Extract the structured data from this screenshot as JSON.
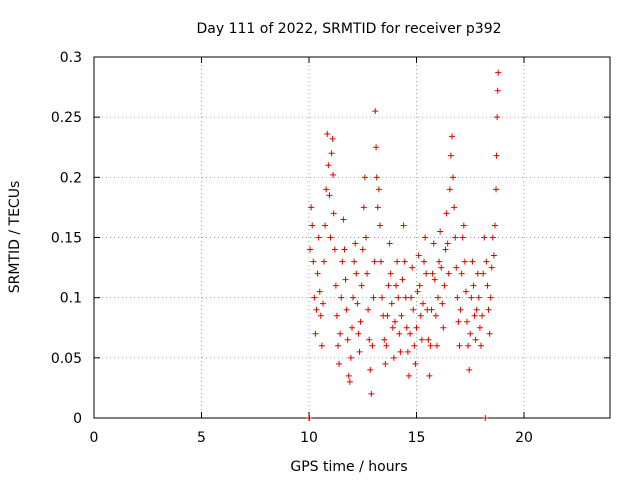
{
  "chart_data": {
    "type": "scatter",
    "title": "Day 111 of 2022, SRMTID for receiver p392",
    "xlabel": "GPS time / hours",
    "ylabel": "SRMTID / TECUs",
    "xlim": [
      0,
      24
    ],
    "ylim": [
      0,
      0.3
    ],
    "xticks": [
      0,
      5,
      10,
      15,
      20
    ],
    "xtick_labels": [
      "0",
      "5",
      "10",
      "15",
      "20"
    ],
    "yticks": [
      0,
      0.05,
      0.1,
      0.15,
      0.2,
      0.25,
      0.3
    ],
    "ytick_labels": [
      "0",
      "0.05",
      "0.1",
      "0.15",
      "0.2",
      "0.25",
      "0.3"
    ],
    "grid": true,
    "marker": "+",
    "series": [
      {
        "name": "p392",
        "color": "#e00000",
        "points": [
          [
            10.0,
            0.0
          ],
          [
            10.02,
            0.0
          ],
          [
            10.05,
            0.14
          ],
          [
            10.1,
            0.175
          ],
          [
            10.15,
            0.16
          ],
          [
            10.2,
            0.13
          ],
          [
            10.25,
            0.1
          ],
          [
            10.3,
            0.07
          ],
          [
            10.35,
            0.09
          ],
          [
            10.4,
            0.12
          ],
          [
            10.45,
            0.15
          ],
          [
            10.5,
            0.105
          ],
          [
            10.55,
            0.085
          ],
          [
            10.6,
            0.06
          ],
          [
            10.65,
            0.095
          ],
          [
            10.7,
            0.13
          ],
          [
            10.75,
            0.16
          ],
          [
            10.8,
            0.19
          ],
          [
            10.85,
            0.236
          ],
          [
            10.9,
            0.21
          ],
          [
            10.95,
            0.185
          ],
          [
            11.0,
            0.15
          ],
          [
            11.05,
            0.22
          ],
          [
            11.1,
            0.232
          ],
          [
            11.12,
            0.202
          ],
          [
            11.15,
            0.17
          ],
          [
            11.2,
            0.14
          ],
          [
            11.25,
            0.11
          ],
          [
            11.3,
            0.085
          ],
          [
            11.35,
            0.06
          ],
          [
            11.4,
            0.045
          ],
          [
            11.45,
            0.07
          ],
          [
            11.5,
            0.1
          ],
          [
            11.55,
            0.13
          ],
          [
            11.6,
            0.165
          ],
          [
            11.65,
            0.14
          ],
          [
            11.7,
            0.115
          ],
          [
            11.75,
            0.09
          ],
          [
            11.8,
            0.065
          ],
          [
            11.85,
            0.035
          ],
          [
            11.9,
            0.03
          ],
          [
            11.95,
            0.05
          ],
          [
            12.0,
            0.075
          ],
          [
            12.05,
            0.1
          ],
          [
            12.1,
            0.13
          ],
          [
            12.15,
            0.145
          ],
          [
            12.2,
            0.12
          ],
          [
            12.25,
            0.095
          ],
          [
            12.3,
            0.07
          ],
          [
            12.35,
            0.055
          ],
          [
            12.4,
            0.08
          ],
          [
            12.45,
            0.11
          ],
          [
            12.5,
            0.14
          ],
          [
            12.55,
            0.175
          ],
          [
            12.6,
            0.2
          ],
          [
            12.65,
            0.15
          ],
          [
            12.7,
            0.12
          ],
          [
            12.75,
            0.09
          ],
          [
            12.8,
            0.065
          ],
          [
            12.85,
            0.04
          ],
          [
            12.9,
            0.02
          ],
          [
            12.95,
            0.06
          ],
          [
            13.0,
            0.1
          ],
          [
            13.05,
            0.13
          ],
          [
            13.08,
            0.255
          ],
          [
            13.12,
            0.225
          ],
          [
            13.15,
            0.2
          ],
          [
            13.2,
            0.175
          ],
          [
            13.25,
            0.19
          ],
          [
            13.3,
            0.16
          ],
          [
            13.35,
            0.13
          ],
          [
            13.4,
            0.1
          ],
          [
            13.45,
            0.085
          ],
          [
            13.5,
            0.065
          ],
          [
            13.55,
            0.045
          ],
          [
            13.6,
            0.06
          ],
          [
            13.65,
            0.085
          ],
          [
            13.7,
            0.11
          ],
          [
            13.75,
            0.145
          ],
          [
            13.8,
            0.12
          ],
          [
            13.85,
            0.095
          ],
          [
            13.9,
            0.075
          ],
          [
            13.95,
            0.05
          ],
          [
            14.0,
            0.08
          ],
          [
            14.05,
            0.11
          ],
          [
            14.1,
            0.13
          ],
          [
            14.15,
            0.1
          ],
          [
            14.2,
            0.07
          ],
          [
            14.25,
            0.055
          ],
          [
            14.3,
            0.085
          ],
          [
            14.35,
            0.115
          ],
          [
            14.4,
            0.16
          ],
          [
            14.45,
            0.13
          ],
          [
            14.5,
            0.1
          ],
          [
            14.55,
            0.075
          ],
          [
            14.6,
            0.055
          ],
          [
            14.65,
            0.035
          ],
          [
            14.7,
            0.07
          ],
          [
            14.75,
            0.1
          ],
          [
            14.8,
            0.125
          ],
          [
            14.85,
            0.09
          ],
          [
            14.9,
            0.06
          ],
          [
            14.95,
            0.045
          ],
          [
            15.0,
            0.075
          ],
          [
            15.05,
            0.105
          ],
          [
            15.1,
            0.135
          ],
          [
            15.15,
            0.11
          ],
          [
            15.2,
            0.085
          ],
          [
            15.25,
            0.065
          ],
          [
            15.3,
            0.095
          ],
          [
            15.35,
            0.13
          ],
          [
            15.4,
            0.15
          ],
          [
            15.45,
            0.12
          ],
          [
            15.5,
            0.09
          ],
          [
            15.55,
            0.065
          ],
          [
            15.6,
            0.035
          ],
          [
            15.65,
            0.06
          ],
          [
            15.7,
            0.09
          ],
          [
            15.75,
            0.12
          ],
          [
            15.8,
            0.145
          ],
          [
            15.85,
            0.115
          ],
          [
            15.9,
            0.085
          ],
          [
            15.95,
            0.06
          ],
          [
            16.0,
            0.1
          ],
          [
            16.05,
            0.13
          ],
          [
            16.1,
            0.155
          ],
          [
            16.15,
            0.125
          ],
          [
            16.2,
            0.095
          ],
          [
            16.25,
            0.075
          ],
          [
            16.3,
            0.11
          ],
          [
            16.35,
            0.14
          ],
          [
            16.4,
            0.17
          ],
          [
            16.45,
            0.145
          ],
          [
            16.5,
            0.12
          ],
          [
            16.55,
            0.19
          ],
          [
            16.6,
            0.218
          ],
          [
            16.65,
            0.234
          ],
          [
            16.7,
            0.2
          ],
          [
            16.75,
            0.175
          ],
          [
            16.8,
            0.15
          ],
          [
            16.85,
            0.125
          ],
          [
            16.9,
            0.1
          ],
          [
            16.95,
            0.08
          ],
          [
            17.0,
            0.06
          ],
          [
            17.05,
            0.09
          ],
          [
            17.1,
            0.12
          ],
          [
            17.15,
            0.15
          ],
          [
            17.2,
            0.16
          ],
          [
            17.25,
            0.13
          ],
          [
            17.3,
            0.105
          ],
          [
            17.35,
            0.08
          ],
          [
            17.4,
            0.06
          ],
          [
            17.45,
            0.04
          ],
          [
            17.5,
            0.07
          ],
          [
            17.55,
            0.1
          ],
          [
            17.6,
            0.13
          ],
          [
            17.65,
            0.11
          ],
          [
            17.7,
            0.085
          ],
          [
            17.75,
            0.065
          ],
          [
            17.8,
            0.09
          ],
          [
            17.85,
            0.12
          ],
          [
            17.9,
            0.1
          ],
          [
            17.95,
            0.075
          ],
          [
            18.0,
            0.06
          ],
          [
            18.05,
            0.085
          ],
          [
            18.1,
            0.12
          ],
          [
            18.15,
            0.15
          ],
          [
            18.2,
            0.0
          ],
          [
            18.25,
            0.13
          ],
          [
            18.3,
            0.11
          ],
          [
            18.35,
            0.09
          ],
          [
            18.4,
            0.07
          ],
          [
            18.45,
            0.1
          ],
          [
            18.5,
            0.125
          ],
          [
            18.55,
            0.15
          ],
          [
            18.6,
            0.135
          ],
          [
            18.65,
            0.16
          ],
          [
            18.7,
            0.19
          ],
          [
            18.72,
            0.218
          ],
          [
            18.75,
            0.25
          ],
          [
            18.78,
            0.272
          ],
          [
            18.8,
            0.287
          ]
        ]
      }
    ]
  }
}
